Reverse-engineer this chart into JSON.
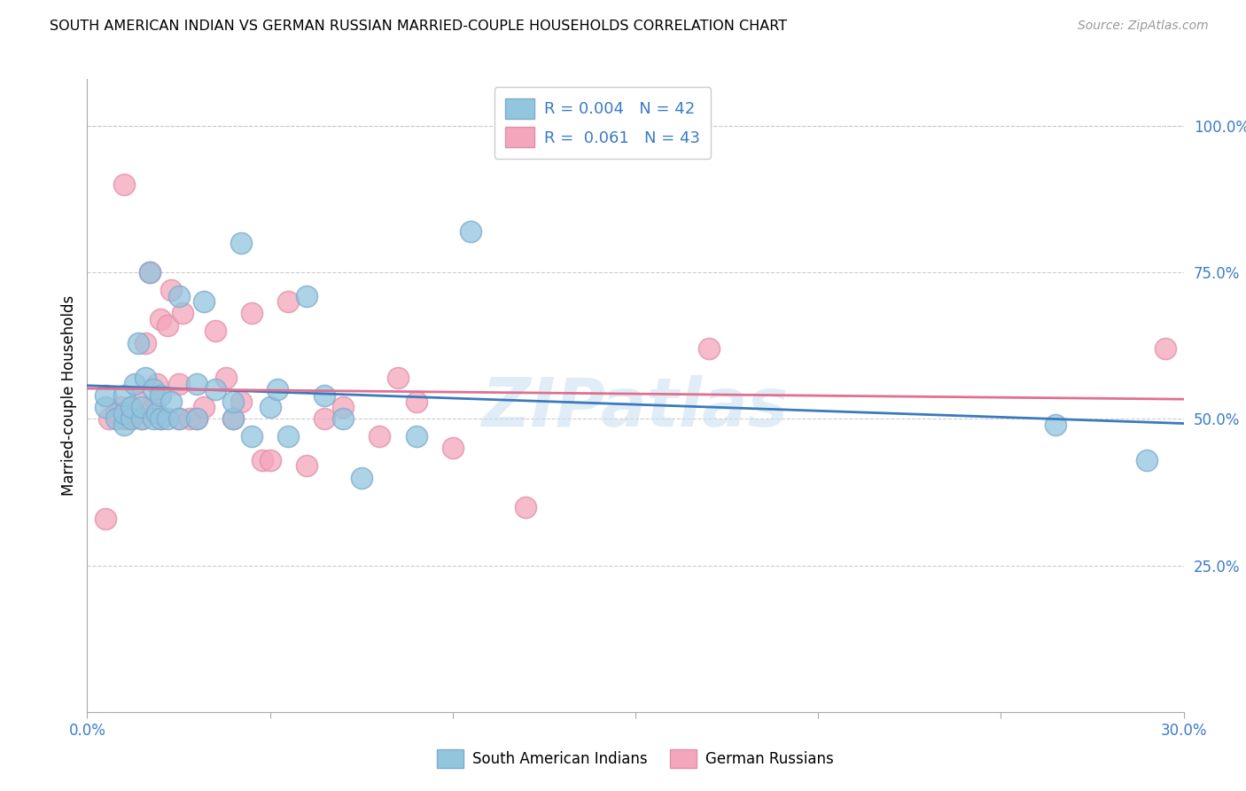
{
  "title": "SOUTH AMERICAN INDIAN VS GERMAN RUSSIAN MARRIED-COUPLE HOUSEHOLDS CORRELATION CHART",
  "source": "Source: ZipAtlas.com",
  "ylabel": "Married-couple Households",
  "watermark": "ZIPatlas",
  "blue_color": "#92c5de",
  "pink_color": "#f4a6bc",
  "blue_edge": "#7ab0d4",
  "pink_edge": "#e8809a",
  "trend_blue": "#3a7abd",
  "trend_pink": "#e07090",
  "tick_color": "#3a7bc8",
  "xlim": [
    0.0,
    0.3
  ],
  "ylim": [
    0.0,
    1.08
  ],
  "ytick_vals": [
    0.25,
    0.5,
    0.75,
    1.0
  ],
  "ytick_labels": [
    "25.0%",
    "50.0%",
    "75.0%",
    "100.0%"
  ],
  "south_american_indians_x": [
    0.005,
    0.005,
    0.008,
    0.01,
    0.01,
    0.01,
    0.012,
    0.012,
    0.013,
    0.014,
    0.015,
    0.015,
    0.016,
    0.017,
    0.018,
    0.018,
    0.019,
    0.02,
    0.02,
    0.022,
    0.023,
    0.025,
    0.025,
    0.03,
    0.03,
    0.032,
    0.035,
    0.04,
    0.04,
    0.042,
    0.045,
    0.05,
    0.052,
    0.055,
    0.06,
    0.065,
    0.07,
    0.075,
    0.09,
    0.105,
    0.265,
    0.29
  ],
  "south_american_indians_y": [
    0.52,
    0.54,
    0.5,
    0.49,
    0.51,
    0.54,
    0.5,
    0.52,
    0.56,
    0.63,
    0.5,
    0.52,
    0.57,
    0.75,
    0.5,
    0.55,
    0.51,
    0.5,
    0.54,
    0.5,
    0.53,
    0.5,
    0.71,
    0.5,
    0.56,
    0.7,
    0.55,
    0.5,
    0.53,
    0.8,
    0.47,
    0.52,
    0.55,
    0.47,
    0.71,
    0.54,
    0.5,
    0.4,
    0.47,
    0.82,
    0.49,
    0.43
  ],
  "german_russians_x": [
    0.005,
    0.006,
    0.008,
    0.009,
    0.01,
    0.01,
    0.01,
    0.012,
    0.013,
    0.014,
    0.015,
    0.016,
    0.017,
    0.018,
    0.019,
    0.02,
    0.02,
    0.022,
    0.023,
    0.025,
    0.025,
    0.026,
    0.028,
    0.03,
    0.032,
    0.035,
    0.038,
    0.04,
    0.042,
    0.045,
    0.048,
    0.05,
    0.055,
    0.06,
    0.065,
    0.07,
    0.08,
    0.085,
    0.09,
    0.1,
    0.12,
    0.17,
    0.295
  ],
  "german_russians_y": [
    0.33,
    0.5,
    0.51,
    0.52,
    0.5,
    0.51,
    0.9,
    0.5,
    0.51,
    0.53,
    0.5,
    0.63,
    0.75,
    0.52,
    0.56,
    0.5,
    0.67,
    0.66,
    0.72,
    0.5,
    0.56,
    0.68,
    0.5,
    0.5,
    0.52,
    0.65,
    0.57,
    0.5,
    0.53,
    0.68,
    0.43,
    0.43,
    0.7,
    0.42,
    0.5,
    0.52,
    0.47,
    0.57,
    0.53,
    0.45,
    0.35,
    0.62,
    0.62
  ]
}
